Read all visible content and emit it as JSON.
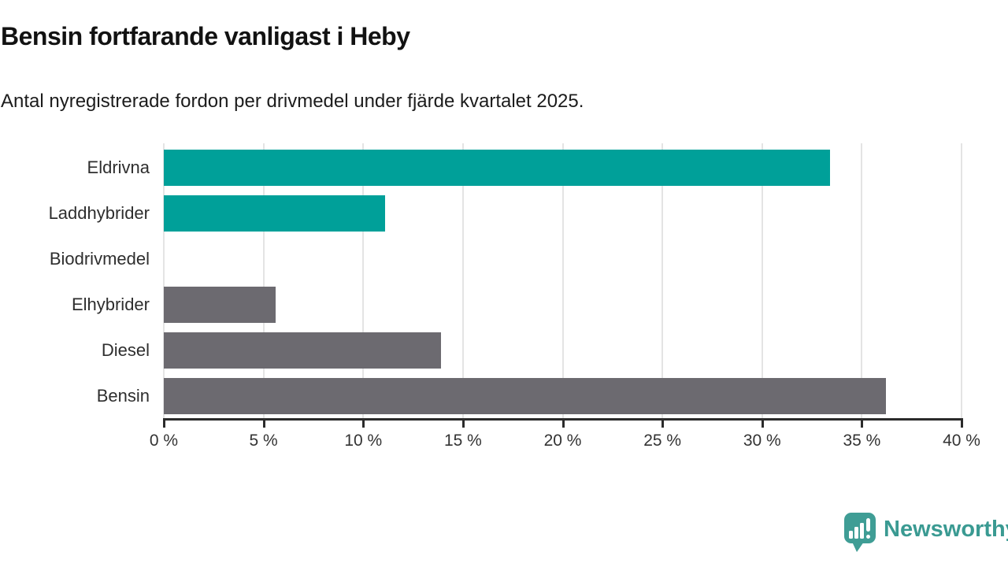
{
  "header": {
    "title": "Bensin fortfarande vanligast i Heby",
    "subtitle": "Antal nyregistrerade fordon per drivmedel under fjärde kvartalet 2025."
  },
  "chart_data": {
    "type": "bar",
    "orientation": "horizontal",
    "title": "Bensin fortfarande vanligast i Heby",
    "subtitle": "Antal nyregistrerade fordon per drivmedel under fjärde kvartalet 2025.",
    "categories": [
      "Eldrivna",
      "Laddhybrider",
      "Biodrivmedel",
      "Elhybrider",
      "Diesel",
      "Bensin"
    ],
    "values": [
      33.4,
      11.1,
      0,
      5.6,
      13.9,
      36.2
    ],
    "unit": "%",
    "xlim": [
      0,
      40
    ],
    "x_ticks": [
      0,
      5,
      10,
      15,
      20,
      25,
      30,
      35,
      40
    ],
    "x_tick_labels": [
      "0 %",
      "5 %",
      "10 %",
      "15 %",
      "20 %",
      "25 %",
      "30 %",
      "35 %",
      "40 %"
    ],
    "grid": true,
    "legend": false,
    "bar_colors": [
      "#00a099",
      "#00a099",
      "#6c6a70",
      "#6c6a70",
      "#6c6a70",
      "#6c6a70"
    ],
    "colors": {
      "highlight": "#00a099",
      "default": "#6c6a70",
      "gridline": "#e4e4e4",
      "axis": "#2b2b2b",
      "category_label": "#2e2e2e",
      "tick_label": "#333333"
    }
  },
  "footer": {
    "brand": "Newsworthy",
    "brand_color": "#3a9a92",
    "logo_icon": "speech-bubble-bar-chart-icon",
    "logo_icon_color": "#3f9d95"
  }
}
